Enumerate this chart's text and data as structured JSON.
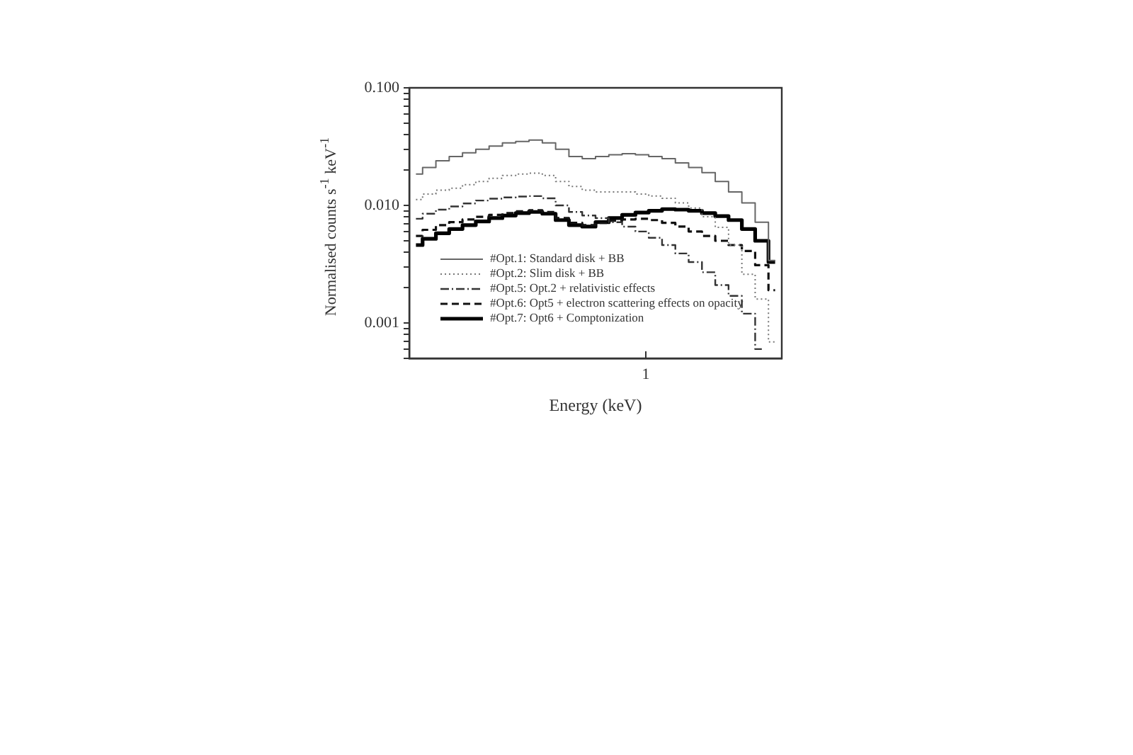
{
  "chart_data": {
    "type": "step",
    "xlabel": "Energy (keV)",
    "ylabel": "Normalised counts s$^{-1}$ keV$^{-1}$",
    "log": "y",
    "grid": false,
    "legend": "bottom left",
    "categories": [
      null,
      null,
      null,
      null,
      null,
      null,
      null,
      null,
      null,
      null,
      null,
      null,
      null,
      null,
      null,
      null,
      null,
      null,
      null,
      null,
      null,
      null,
      null,
      null,
      null,
      null,
      null,
      null
    ],
    "annotations": [
      "1"
    ],
    "ylim": [
      0.0005,
      0.1
    ],
    "yticks": [
      {
        "value": 0.0005,
        "label": null
      },
      {
        "value": 0.0006,
        "label": null
      },
      {
        "value": 0.0007,
        "label": null
      },
      {
        "value": 0.0008,
        "label": null
      },
      {
        "value": 0.0009,
        "label": null
      },
      {
        "value": 0.001,
        "label": "0.001"
      },
      {
        "value": 0.002,
        "label": null
      },
      {
        "value": 0.003,
        "label": null
      },
      {
        "value": 0.004,
        "label": null
      },
      {
        "value": 0.005,
        "label": null
      },
      {
        "value": 0.006,
        "label": null
      },
      {
        "value": 0.007,
        "label": null
      },
      {
        "value": 0.008,
        "label": null
      },
      {
        "value": 0.009,
        "label": null
      },
      {
        "value": 0.01,
        "label": "0.010"
      },
      {
        "value": 0.02,
        "label": null
      },
      {
        "value": 0.03,
        "label": null
      },
      {
        "value": 0.04,
        "label": null
      },
      {
        "value": 0.05,
        "label": null
      },
      {
        "value": 0.06,
        "label": null
      },
      {
        "value": 0.07,
        "label": null
      },
      {
        "value": 0.08,
        "label": null
      },
      {
        "value": 0.09,
        "label": null
      },
      {
        "value": 0.1,
        "label": "0.100"
      }
    ],
    "series": [
      {
        "name": "#Opt.1: Standard disk + BB",
        "color": "#666666",
        "line_style": "solid",
        "values": [
          0.0185,
          0.021,
          0.024,
          0.026,
          0.028,
          0.03,
          0.032,
          0.034,
          0.035,
          0.036,
          0.034,
          0.03,
          0.026,
          0.025,
          0.026,
          0.027,
          0.0275,
          0.027,
          0.026,
          0.025,
          0.023,
          0.021,
          0.019,
          0.016,
          0.013,
          0.0105,
          0.0072,
          0.0034
        ]
      },
      {
        "name": "#Opt.2: Slim disk + BB",
        "color": "#777777",
        "line_style": "dotted",
        "values": [
          0.0112,
          0.0125,
          0.0135,
          0.014,
          0.015,
          0.016,
          0.017,
          0.018,
          0.0185,
          0.0188,
          0.018,
          0.016,
          0.0145,
          0.0135,
          0.013,
          0.013,
          0.013,
          0.0125,
          0.012,
          0.0115,
          0.0105,
          0.0095,
          0.008,
          0.0065,
          0.0046,
          0.0026,
          0.0016,
          0.00069
        ]
      },
      {
        "name": "#Opt.5: Opt.2 + relativistic effects",
        "color": "#333333",
        "line_style": "dashdot",
        "values": [
          0.0077,
          0.0085,
          0.0092,
          0.0098,
          0.0104,
          0.011,
          0.0114,
          0.0117,
          0.0119,
          0.012,
          0.0115,
          0.01,
          0.0088,
          0.0082,
          0.0078,
          0.0072,
          0.0066,
          0.006,
          0.0053,
          0.0046,
          0.0039,
          0.0033,
          0.0027,
          0.0021,
          0.0017,
          0.0012,
          0.0006,
          null
        ]
      },
      {
        "name": "#Opt.6: Opt5 + electron scattering effects on opacity",
        "color": "#111111",
        "line_style": "dashed",
        "values": [
          0.0055,
          0.0062,
          0.0068,
          0.0072,
          0.0076,
          0.008,
          0.0083,
          0.0086,
          0.0089,
          0.0091,
          0.0088,
          0.0078,
          0.0071,
          0.0068,
          0.0071,
          0.0074,
          0.0076,
          0.0077,
          0.0075,
          0.0071,
          0.0066,
          0.006,
          0.0055,
          0.005,
          0.0046,
          0.0041,
          0.0031,
          0.0019
        ]
      },
      {
        "name": "#Opt.7: Opt6 + Comptonization",
        "color": "#000000",
        "line_style": "solid",
        "values": [
          0.0046,
          0.0052,
          0.0058,
          0.0063,
          0.0068,
          0.0073,
          0.0078,
          0.0082,
          0.0086,
          0.0088,
          0.0085,
          0.0075,
          0.0068,
          0.0066,
          0.0072,
          0.0078,
          0.0083,
          0.0087,
          0.009,
          0.0093,
          0.0092,
          0.009,
          0.0086,
          0.0081,
          0.0075,
          0.0063,
          0.005,
          0.0033
        ]
      }
    ]
  }
}
